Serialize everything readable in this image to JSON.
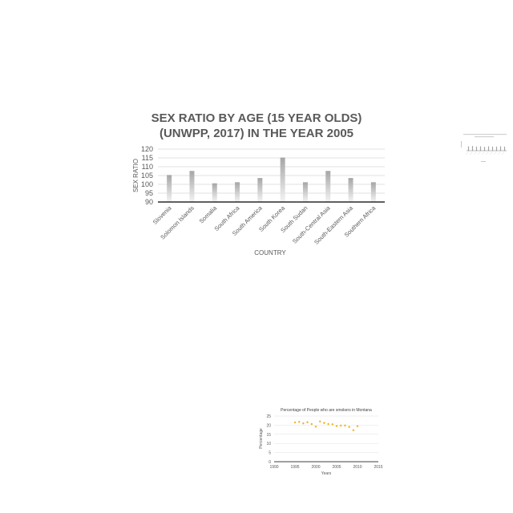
{
  "chart_data": [
    {
      "type": "bar",
      "title_lines": [
        "SEX RATIO BY AGE (15 YEAR OLDS)",
        "(UNWPP, 2017) IN THE YEAR 2005"
      ],
      "xlabel": "COUNTRY",
      "ylabel": "SEX RATIO",
      "ylim": [
        90,
        120
      ],
      "yticks": [
        90,
        95,
        100,
        105,
        110,
        115,
        120
      ],
      "grid": true,
      "categories": [
        "Slovenia",
        "Solomon Islands",
        "Somalia",
        "South Africa",
        "South America",
        "South Korea",
        "South Sudan",
        "South-Central Asia",
        "South-Eastern Asia",
        "Southern Africa"
      ],
      "values": [
        105.3,
        107.6,
        100.6,
        101.2,
        103.6,
        115.2,
        101.2,
        107.6,
        103.6,
        101.2
      ],
      "bar_color": "#a6a6a6"
    },
    {
      "type": "scatter",
      "title": "Percentage of People who are smokers in Montana",
      "xlabel": "Years",
      "ylabel": "Percentage",
      "xlim": [
        1990,
        2015
      ],
      "ylim": [
        0,
        25
      ],
      "xticks": [
        1990,
        1995,
        2000,
        2005,
        2010,
        2015
      ],
      "yticks": [
        0,
        5,
        10,
        15,
        20,
        25
      ],
      "grid": true,
      "x": [
        1995,
        1996,
        1997,
        1998,
        1999,
        2000,
        2001,
        2002,
        2003,
        2004,
        2005,
        2006,
        2007,
        2008,
        2009,
        2010
      ],
      "y": [
        21.5,
        21.8,
        21.0,
        21.6,
        20.6,
        19.2,
        22.0,
        21.2,
        20.6,
        20.5,
        19.5,
        19.8,
        19.8,
        19.0,
        17.2,
        19.4
      ],
      "point_color": "#f2b21e"
    },
    {
      "type": "bar",
      "categories": [
        "",
        "",
        "",
        "",
        "",
        "",
        "",
        "",
        "",
        ""
      ],
      "values": [
        105,
        106,
        104,
        105,
        103,
        105,
        104,
        104,
        105,
        104
      ],
      "ylim": [
        90,
        120
      ],
      "bar_color": "#a6a6a6"
    }
  ]
}
